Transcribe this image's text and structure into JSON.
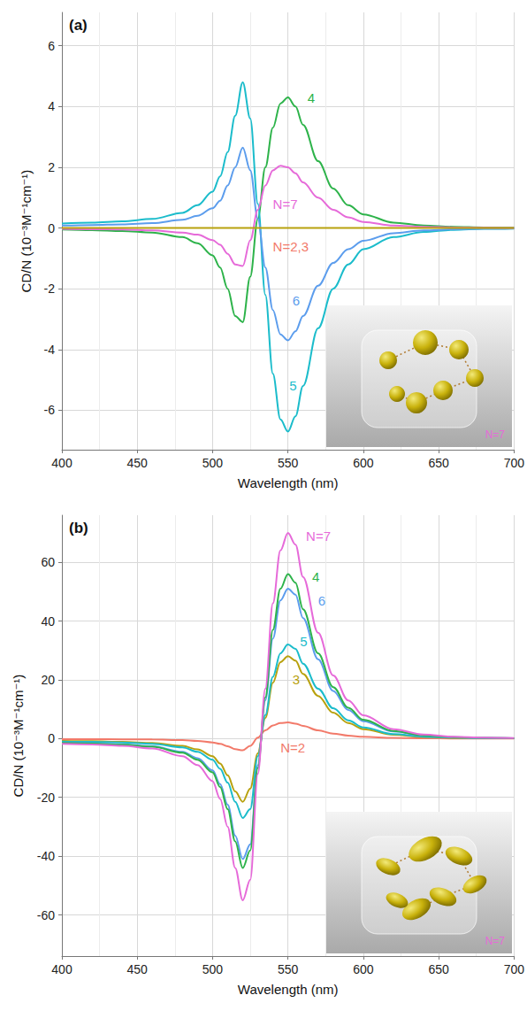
{
  "chart_data": [
    {
      "type": "line",
      "panel": "(a)",
      "x_label": "Wavelength (nm)",
      "y_label": "CD/N (10⁻³M⁻¹cm⁻¹)",
      "xlim": [
        400,
        700
      ],
      "xticks": [
        400,
        450,
        500,
        550,
        600,
        650,
        700
      ],
      "ylim": [
        -7.3,
        7.1
      ],
      "yticks": [
        -6,
        -4,
        -2,
        0,
        2,
        4,
        6
      ],
      "grid": true,
      "x": [
        400,
        420,
        440,
        460,
        480,
        490,
        500,
        505,
        510,
        515,
        520,
        525,
        530,
        535,
        540,
        545,
        550,
        555,
        560,
        570,
        580,
        590,
        600,
        620,
        640,
        660,
        680,
        700
      ],
      "series": [
        {
          "name": "4",
          "color": "#2db34a",
          "label_at": [
            563,
            4.3
          ],
          "values": [
            -0.05,
            -0.07,
            -0.1,
            -0.15,
            -0.3,
            -0.5,
            -0.9,
            -1.3,
            -2.0,
            -2.9,
            -3.1,
            -1.6,
            0.3,
            2.0,
            3.3,
            4.1,
            4.3,
            4.0,
            3.4,
            2.2,
            1.3,
            0.75,
            0.45,
            0.18,
            0.08,
            0.04,
            0.02,
            0.01
          ]
        },
        {
          "name": "5",
          "color": "#1bbccb",
          "label_at": [
            551,
            -5.2
          ],
          "values": [
            0.15,
            0.18,
            0.22,
            0.3,
            0.5,
            0.75,
            1.2,
            1.7,
            2.5,
            3.7,
            4.8,
            3.6,
            0.8,
            -2.2,
            -4.8,
            -6.3,
            -6.7,
            -6.2,
            -5.2,
            -3.3,
            -2.0,
            -1.2,
            -0.7,
            -0.3,
            -0.13,
            -0.06,
            -0.03,
            -0.02
          ]
        },
        {
          "name": "6",
          "color": "#5c9ded",
          "label_at": [
            553,
            -2.4
          ],
          "values": [
            0.08,
            0.1,
            0.12,
            0.16,
            0.27,
            0.4,
            0.65,
            0.9,
            1.4,
            2.0,
            2.65,
            1.9,
            0.3,
            -1.3,
            -2.7,
            -3.5,
            -3.7,
            -3.4,
            -2.9,
            -1.9,
            -1.15,
            -0.7,
            -0.42,
            -0.17,
            -0.08,
            -0.04,
            -0.02,
            -0.01
          ]
        },
        {
          "name": "N=7",
          "color": "#e66ad9",
          "label_at": [
            540,
            0.8
          ],
          "values": [
            -0.03,
            -0.04,
            -0.05,
            -0.08,
            -0.15,
            -0.22,
            -0.4,
            -0.55,
            -0.85,
            -1.2,
            -1.25,
            -0.4,
            0.6,
            1.4,
            1.9,
            2.05,
            2.0,
            1.8,
            1.5,
            1.0,
            0.6,
            0.35,
            0.2,
            0.08,
            0.04,
            0.02,
            0.01,
            0
          ]
        },
        {
          "name": "N=2,3",
          "color": "#b8a10e",
          "label_color": "#f27a6a",
          "label_at": [
            540,
            -0.6
          ],
          "values": [
            0,
            0,
            0,
            0,
            0,
            0,
            0,
            0,
            0,
            0,
            0,
            0,
            0,
            0,
            0,
            0,
            0,
            0,
            0,
            0,
            0,
            0,
            0,
            0,
            0,
            0,
            0,
            0
          ]
        }
      ],
      "inset": {
        "label": "N=7",
        "color": "#e66ad9",
        "marker": "sphere"
      }
    },
    {
      "type": "line",
      "panel": "(b)",
      "x_label": "Wavelength (nm)",
      "y_label": "CD/N (10⁻³M⁻¹cm⁻¹)",
      "xlim": [
        400,
        700
      ],
      "xticks": [
        400,
        450,
        500,
        550,
        600,
        650,
        700
      ],
      "ylim": [
        -74,
        76
      ],
      "yticks": [
        -60,
        -40,
        -20,
        0,
        20,
        40,
        60
      ],
      "grid": true,
      "x": [
        400,
        420,
        440,
        460,
        480,
        490,
        500,
        505,
        510,
        515,
        520,
        525,
        530,
        535,
        540,
        545,
        550,
        555,
        560,
        570,
        580,
        590,
        600,
        620,
        640,
        660,
        680,
        700
      ],
      "series": [
        {
          "name": "N=2",
          "color": "#f27a6a",
          "label_at": [
            545,
            -3
          ],
          "values": [
            -0.2,
            -0.2,
            -0.25,
            -0.3,
            -0.5,
            -0.8,
            -1.3,
            -1.8,
            -2.6,
            -3.6,
            -4.0,
            -2.5,
            0.3,
            2.8,
            4.5,
            5.3,
            5.5,
            5.1,
            4.3,
            2.8,
            1.7,
            1.0,
            0.6,
            0.25,
            0.1,
            0.05,
            0.02,
            0.01
          ]
        },
        {
          "name": "3",
          "color": "#b8a10e",
          "label_at": [
            553,
            20
          ],
          "values": [
            -0.8,
            -0.9,
            -1.1,
            -1.5,
            -2.5,
            -3.7,
            -6,
            -8.5,
            -12.5,
            -18,
            -21.5,
            -17,
            -5,
            7,
            19,
            26,
            28,
            26.5,
            22,
            14.5,
            8.8,
            5.3,
            3.2,
            1.3,
            0.55,
            0.25,
            0.12,
            0.06
          ]
        },
        {
          "name": "5",
          "color": "#1bbccb",
          "label_at": [
            558,
            33
          ],
          "values": [
            -1,
            -1.1,
            -1.3,
            -1.8,
            -3,
            -4.5,
            -7.2,
            -10.3,
            -15,
            -21.5,
            -27,
            -24,
            -6,
            8,
            21,
            29,
            32,
            30.5,
            25.5,
            17,
            10.3,
            6.2,
            3.8,
            1.5,
            0.65,
            0.3,
            0.15,
            0.07
          ]
        },
        {
          "name": "6",
          "color": "#5c9ded",
          "label_at": [
            570,
            47
          ],
          "values": [
            -1.4,
            -1.6,
            -2,
            -2.6,
            -4.5,
            -6.7,
            -10.8,
            -15.5,
            -22.5,
            -33,
            -41,
            -36,
            -9,
            13,
            34,
            47,
            51,
            49,
            41,
            27,
            16.2,
            9.7,
            5.9,
            2.4,
            1.0,
            0.45,
            0.22,
            0.11
          ]
        },
        {
          "name": "4",
          "color": "#2db34a",
          "label_at": [
            566,
            55
          ],
          "values": [
            -1.5,
            -1.7,
            -2.1,
            -2.8,
            -4.8,
            -7.2,
            -11.5,
            -16.5,
            -24,
            -35,
            -44,
            -38,
            -10,
            14,
            37,
            51,
            56,
            53,
            44,
            29,
            17.5,
            10.5,
            6.4,
            2.6,
            1.1,
            0.5,
            0.25,
            0.12
          ]
        },
        {
          "name": "N=7",
          "color": "#e66ad9",
          "label_at": [
            562,
            69
          ],
          "values": [
            -1.8,
            -2,
            -2.5,
            -3.4,
            -6,
            -9,
            -14.5,
            -20.5,
            -30,
            -44,
            -55,
            -48,
            -12,
            17,
            46,
            64,
            70,
            66,
            55,
            36,
            21.5,
            13,
            7.9,
            3.2,
            1.35,
            0.6,
            0.3,
            0.15
          ]
        }
      ],
      "inset": {
        "label": "N=7",
        "color": "#e66ad9",
        "marker": "ellipsoid"
      }
    }
  ]
}
